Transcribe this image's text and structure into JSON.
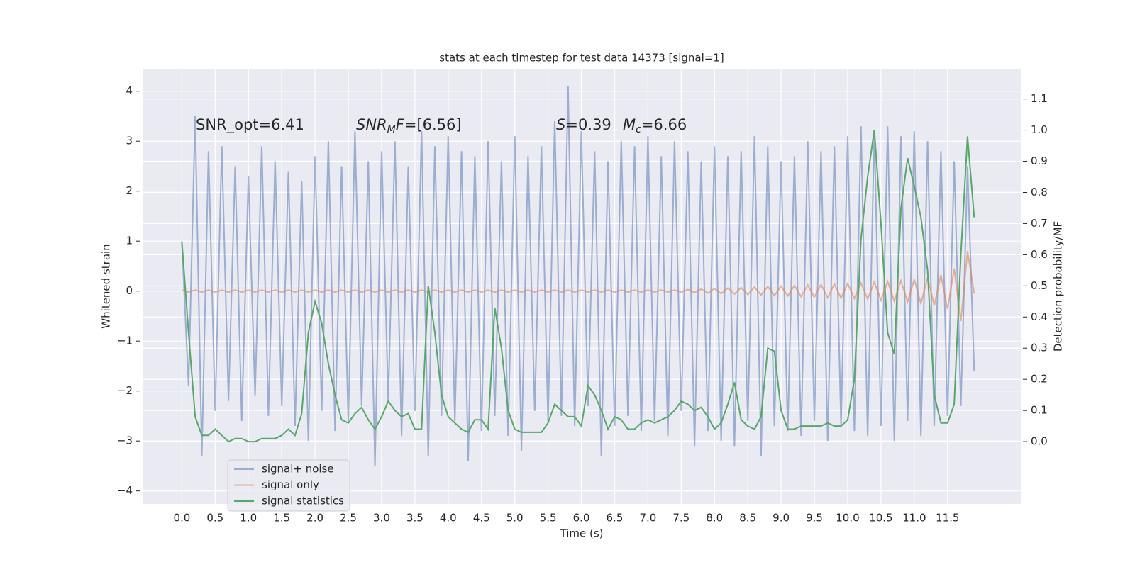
{
  "chart_data": {
    "type": "line",
    "title": "stats at each timestep for test data 14373 [signal=1]",
    "x_label": "Time (s)",
    "y_label": "Whitened strain",
    "y2_label": "Detection probability/MF",
    "grid": true,
    "legend": "lower left",
    "xlim": [
      -0.59,
      12.6
    ],
    "ylim": [
      -4.26,
      4.45
    ],
    "y2lim": [
      -0.2,
      1.197
    ],
    "xticks": [
      {
        "value": 0,
        "label": "0.0"
      },
      0.5,
      {
        "value": 1,
        "label": "1.0"
      },
      1.5,
      {
        "value": 2,
        "label": "2.0"
      },
      2.5,
      {
        "value": 3,
        "label": "3.0"
      },
      3.5,
      {
        "value": 4,
        "label": "4.0"
      },
      4.5,
      {
        "value": 5,
        "label": "5.0"
      },
      5.5,
      {
        "value": 6,
        "label": "6.0"
      },
      6.5,
      {
        "value": 7,
        "label": "7.0"
      },
      7.5,
      {
        "value": 8,
        "label": "8.0"
      },
      8.5,
      {
        "value": 9,
        "label": "9.0"
      },
      9.5,
      {
        "value": 10,
        "label": "10.0"
      },
      10.5,
      {
        "value": 11,
        "label": "11.0"
      },
      11.5
    ],
    "yticks": [
      {
        "value": -4,
        "label": "−4"
      },
      {
        "value": -3,
        "label": "−3"
      },
      {
        "value": -2,
        "label": "−2"
      },
      {
        "value": -1,
        "label": "−1"
      },
      0,
      1,
      2,
      3,
      4
    ],
    "y2ticks": [
      {
        "value": 0,
        "label": "0.0"
      },
      0.1,
      0.2,
      0.3,
      0.4,
      0.5,
      0.6,
      0.7,
      0.8,
      0.9,
      {
        "value": 1,
        "label": "1.0"
      },
      1.1
    ],
    "annotations": [
      [
        {
          "text": "SNR_opt=6.41"
        }
      ],
      [
        {
          "text": "SNR",
          "italic": true
        },
        {
          "text": "M",
          "italic": true,
          "sub": true
        },
        {
          "text": "F",
          "italic": true
        },
        {
          "text": "=[6.56]"
        }
      ],
      [
        {
          "text": "S",
          "italic": true
        },
        {
          "text": "=0.39"
        }
      ],
      [
        {
          "text": "M",
          "italic": true
        },
        {
          "text": "c",
          "italic": true,
          "sub": true
        },
        {
          "text": "=6.66"
        }
      ]
    ],
    "x": [
      0.0,
      0.1,
      0.2,
      0.3,
      0.4,
      0.5,
      0.6,
      0.7,
      0.8,
      0.9,
      1.0,
      1.1,
      1.2,
      1.3,
      1.4,
      1.5,
      1.6,
      1.7,
      1.8,
      1.9,
      2.0,
      2.1,
      2.2,
      2.3,
      2.4,
      2.5,
      2.6,
      2.7,
      2.8,
      2.9,
      3.0,
      3.1,
      3.2,
      3.3,
      3.4,
      3.5,
      3.6,
      3.7,
      3.8,
      3.9,
      4.0,
      4.1,
      4.2,
      4.3,
      4.4,
      4.5,
      4.6,
      4.7,
      4.8,
      4.9,
      5.0,
      5.1,
      5.2,
      5.3,
      5.4,
      5.5,
      5.6,
      5.7,
      5.8,
      5.9,
      6.0,
      6.1,
      6.2,
      6.3,
      6.4,
      6.5,
      6.6,
      6.7,
      6.8,
      6.9,
      7.0,
      7.1,
      7.2,
      7.3,
      7.4,
      7.5,
      7.6,
      7.7,
      7.8,
      7.9,
      8.0,
      8.1,
      8.2,
      8.3,
      8.4,
      8.5,
      8.6,
      8.7,
      8.8,
      8.9,
      9.0,
      9.1,
      9.2,
      9.3,
      9.4,
      9.5,
      9.6,
      9.7,
      9.8,
      9.9,
      10.0,
      10.1,
      10.2,
      10.3,
      10.4,
      10.5,
      10.6,
      10.7,
      10.8,
      10.9,
      11.0,
      11.1,
      11.2,
      11.3,
      11.4,
      11.5,
      11.6,
      11.7,
      11.8,
      11.9
    ],
    "series": [
      {
        "name": "signal+ noise",
        "color": "#4c72b0",
        "opacity": 0.5,
        "values": [
          1.0,
          -1.9,
          3.5,
          -3.3,
          2.8,
          -2.4,
          2.9,
          -2.2,
          2.5,
          -2.6,
          2.3,
          -2.1,
          2.9,
          -2.5,
          2.6,
          -2.3,
          2.4,
          -2.7,
          2.2,
          -3.0,
          2.7,
          -2.4,
          3.0,
          -2.8,
          2.5,
          -2.6,
          3.2,
          -2.3,
          2.6,
          -3.5,
          2.8,
          -2.2,
          3.0,
          -2.9,
          2.5,
          -2.4,
          3.2,
          -3.3,
          2.9,
          -2.5,
          3.1,
          -2.6,
          2.8,
          -3.4,
          2.7,
          -2.8,
          3.0,
          -2.5,
          2.6,
          -2.9,
          3.1,
          -3.2,
          2.7,
          -2.4,
          2.9,
          -2.6,
          3.4,
          -2.5,
          4.1,
          -2.7,
          3.2,
          -2.3,
          2.8,
          -3.3,
          2.6,
          -2.7,
          3.0,
          -2.5,
          2.9,
          -2.8,
          3.1,
          -2.6,
          2.7,
          -2.9,
          3.0,
          -2.4,
          2.8,
          -3.1,
          2.6,
          -2.8,
          2.9,
          -3.0,
          2.7,
          -3.1,
          2.8,
          -2.6,
          3.1,
          -3.3,
          2.9,
          -2.7,
          2.6,
          -2.8,
          2.7,
          -2.9,
          3.0,
          -2.6,
          2.8,
          -3.0,
          2.9,
          -2.7,
          3.1,
          -2.8,
          3.3,
          -2.9,
          3.2,
          -2.7,
          3.3,
          -3.0,
          3.1,
          -2.6,
          3.2,
          -2.9,
          3.0,
          -2.7,
          2.8,
          -2.5,
          2.6,
          -2.3,
          2.5,
          -1.6
        ]
      },
      {
        "name": "signal only",
        "color": "#dd8452",
        "opacity": 0.6,
        "values": [
          0.02,
          -0.02,
          0.02,
          -0.02,
          0.02,
          -0.02,
          0.02,
          -0.02,
          0.02,
          -0.02,
          0.02,
          -0.02,
          0.02,
          -0.02,
          0.02,
          -0.02,
          0.02,
          -0.02,
          0.02,
          -0.02,
          0.02,
          -0.02,
          0.02,
          -0.02,
          0.02,
          -0.02,
          0.02,
          -0.02,
          0.02,
          -0.02,
          0.02,
          -0.02,
          0.02,
          -0.02,
          0.02,
          -0.02,
          0.02,
          -0.02,
          0.02,
          -0.02,
          0.02,
          -0.02,
          0.02,
          -0.02,
          0.02,
          -0.02,
          0.02,
          -0.02,
          0.02,
          -0.02,
          0.02,
          -0.02,
          0.02,
          -0.02,
          0.02,
          -0.02,
          0.02,
          -0.02,
          0.02,
          -0.02,
          0.02,
          -0.02,
          0.02,
          -0.02,
          0.02,
          -0.02,
          0.02,
          -0.02,
          0.02,
          -0.02,
          0.02,
          -0.02,
          0.02,
          -0.02,
          0.02,
          -0.02,
          0.03,
          -0.03,
          0.04,
          -0.04,
          0.05,
          -0.05,
          0.06,
          -0.06,
          0.07,
          -0.07,
          0.08,
          -0.08,
          0.09,
          -0.09,
          0.1,
          -0.1,
          0.11,
          -0.11,
          0.12,
          -0.12,
          0.13,
          -0.13,
          0.14,
          -0.14,
          0.15,
          -0.15,
          0.16,
          -0.16,
          0.18,
          -0.18,
          0.19,
          -0.2,
          0.21,
          -0.22,
          0.23,
          -0.25,
          0.27,
          -0.29,
          0.32,
          -0.36,
          0.45,
          -0.6,
          0.8,
          -0.05
        ]
      },
      {
        "name": "signal statistics",
        "color": "#55a868",
        "opacity": 1,
        "axis": "y2",
        "values": [
          0.64,
          0.35,
          0.08,
          0.02,
          0.02,
          0.04,
          0.02,
          0.0,
          0.01,
          0.01,
          0.0,
          0.0,
          0.01,
          0.01,
          0.01,
          0.02,
          0.04,
          0.02,
          0.09,
          0.35,
          0.45,
          0.38,
          0.25,
          0.15,
          0.07,
          0.06,
          0.09,
          0.11,
          0.07,
          0.04,
          0.08,
          0.13,
          0.1,
          0.08,
          0.09,
          0.04,
          0.04,
          0.5,
          0.35,
          0.15,
          0.08,
          0.06,
          0.04,
          0.03,
          0.07,
          0.07,
          0.04,
          0.43,
          0.3,
          0.1,
          0.04,
          0.03,
          0.03,
          0.03,
          0.03,
          0.06,
          0.12,
          0.1,
          0.08,
          0.08,
          0.05,
          0.18,
          0.15,
          0.1,
          0.04,
          0.08,
          0.07,
          0.04,
          0.04,
          0.06,
          0.07,
          0.06,
          0.07,
          0.08,
          0.1,
          0.13,
          0.12,
          0.1,
          0.11,
          0.08,
          0.04,
          0.06,
          0.12,
          0.19,
          0.07,
          0.05,
          0.04,
          0.08,
          0.3,
          0.29,
          0.1,
          0.04,
          0.04,
          0.05,
          0.05,
          0.05,
          0.05,
          0.06,
          0.05,
          0.05,
          0.07,
          0.2,
          0.65,
          0.85,
          1.0,
          0.7,
          0.35,
          0.28,
          0.75,
          0.91,
          0.82,
          0.72,
          0.55,
          0.15,
          0.06,
          0.06,
          0.12,
          0.6,
          0.98,
          0.72
        ]
      }
    ]
  }
}
